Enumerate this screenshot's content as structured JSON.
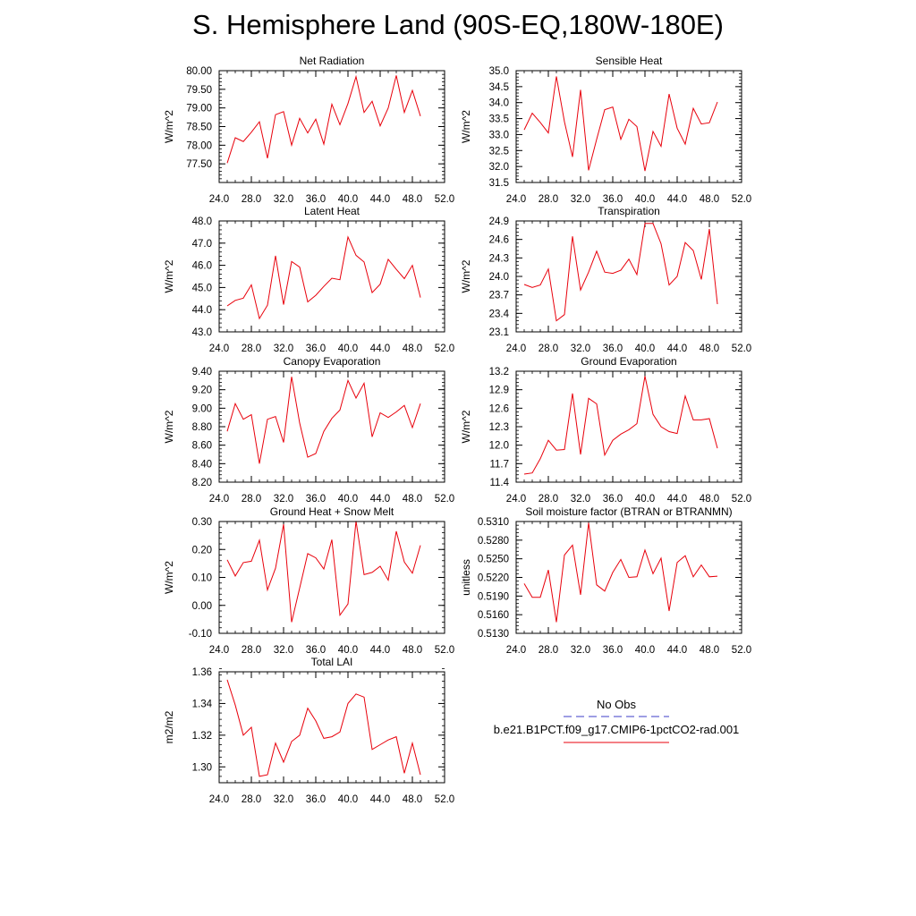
{
  "title": "S. Hemisphere Land (90S-EQ,180W-180E)",
  "legend": {
    "entries": [
      {
        "label": "No Obs",
        "color": "#3c3cc8",
        "dash": true
      },
      {
        "label": "b.e21.B1PCT.f09_g17.CMIP6-1pctCO2-rad.001",
        "color": "#e8000b",
        "dash": false
      }
    ]
  },
  "chart_data": [
    {
      "type": "line",
      "title": "Net Radiation",
      "ylabel": "W/m^2",
      "xlim": [
        24,
        52
      ],
      "xticks": [
        "24.0",
        "28.0",
        "32.0",
        "36.0",
        "40.0",
        "44.0",
        "48.0",
        "52.0"
      ],
      "ylim": [
        77.0,
        80.0
      ],
      "yticks": [
        "77.50",
        "78.00",
        "78.50",
        "79.00",
        "79.50",
        "80.00"
      ],
      "series": [
        {
          "color": "#e8000b",
          "x": [
            25,
            26,
            27,
            28,
            29,
            30,
            31,
            32,
            33,
            34,
            35,
            36,
            37,
            38,
            39,
            40,
            41,
            42,
            43,
            44,
            45,
            46,
            47,
            48,
            49
          ],
          "y": [
            77.52,
            78.2,
            78.1,
            78.35,
            78.63,
            77.65,
            78.82,
            78.9,
            78.0,
            78.72,
            78.33,
            78.7,
            78.03,
            79.1,
            78.55,
            79.12,
            79.84,
            78.88,
            79.18,
            78.52,
            79.0,
            79.87,
            78.88,
            79.47,
            78.78
          ]
        }
      ]
    },
    {
      "type": "line",
      "title": "Sensible Heat",
      "ylabel": "W/m^2",
      "xlim": [
        24,
        52
      ],
      "xticks": [
        "24.0",
        "28.0",
        "32.0",
        "36.0",
        "40.0",
        "44.0",
        "48.0",
        "52.0"
      ],
      "ylim": [
        31.5,
        35.0
      ],
      "yticks": [
        "31.5",
        "32.0",
        "32.5",
        "33.0",
        "33.5",
        "34.0",
        "34.5",
        "35.0"
      ],
      "series": [
        {
          "color": "#e8000b",
          "x": [
            25,
            26,
            27,
            28,
            29,
            30,
            31,
            32,
            33,
            34,
            35,
            36,
            37,
            38,
            39,
            40,
            41,
            42,
            43,
            44,
            45,
            46,
            47,
            48,
            49
          ],
          "y": [
            33.15,
            33.67,
            33.38,
            33.05,
            34.82,
            33.4,
            32.3,
            34.4,
            31.88,
            32.85,
            33.78,
            33.86,
            32.85,
            33.48,
            33.25,
            31.86,
            33.1,
            32.63,
            34.27,
            33.2,
            32.7,
            33.82,
            33.33,
            33.37,
            34.02
          ]
        }
      ]
    },
    {
      "type": "line",
      "title": "Latent Heat",
      "ylabel": "W/m^2",
      "xlim": [
        24,
        52
      ],
      "xticks": [
        "24.0",
        "28.0",
        "32.0",
        "36.0",
        "40.0",
        "44.0",
        "48.0",
        "52.0"
      ],
      "ylim": [
        43.0,
        48.0
      ],
      "yticks": [
        "43.0",
        "44.0",
        "45.0",
        "46.0",
        "47.0",
        "48.0"
      ],
      "series": [
        {
          "color": "#e8000b",
          "x": [
            25,
            26,
            27,
            28,
            29,
            30,
            31,
            32,
            33,
            34,
            35,
            36,
            37,
            38,
            39,
            40,
            41,
            42,
            43,
            44,
            45,
            46,
            47,
            48,
            49
          ],
          "y": [
            44.17,
            44.42,
            44.52,
            45.12,
            43.6,
            44.2,
            46.43,
            44.23,
            46.17,
            45.92,
            44.35,
            44.65,
            45.05,
            45.42,
            45.35,
            47.28,
            46.45,
            46.15,
            44.77,
            45.15,
            46.27,
            45.82,
            45.4,
            46.0,
            44.55
          ]
        }
      ]
    },
    {
      "type": "line",
      "title": "Transpiration",
      "ylabel": "W/m^2",
      "xlim": [
        24,
        52
      ],
      "xticks": [
        "24.0",
        "28.0",
        "32.0",
        "36.0",
        "40.0",
        "44.0",
        "48.0",
        "52.0"
      ],
      "ylim": [
        23.1,
        24.9
      ],
      "yticks": [
        "23.1",
        "23.4",
        "23.7",
        "24.0",
        "24.3",
        "24.6",
        "24.9"
      ],
      "series": [
        {
          "color": "#e8000b",
          "x": [
            25,
            26,
            27,
            28,
            29,
            30,
            31,
            32,
            33,
            34,
            35,
            36,
            37,
            38,
            39,
            40,
            41,
            42,
            43,
            44,
            45,
            46,
            47,
            48,
            49
          ],
          "y": [
            23.87,
            23.82,
            23.86,
            24.12,
            23.28,
            23.38,
            24.65,
            23.78,
            24.07,
            24.41,
            24.07,
            24.05,
            24.1,
            24.28,
            24.03,
            24.86,
            24.86,
            24.53,
            23.86,
            24.0,
            24.55,
            24.42,
            23.95,
            24.77,
            23.55
          ]
        }
      ]
    },
    {
      "type": "line",
      "title": "Canopy Evaporation",
      "ylabel": "W/m^2",
      "xlim": [
        24,
        52
      ],
      "xticks": [
        "24.0",
        "28.0",
        "32.0",
        "36.0",
        "40.0",
        "44.0",
        "48.0",
        "52.0"
      ],
      "ylim": [
        8.2,
        9.4
      ],
      "yticks": [
        "8.20",
        "8.40",
        "8.60",
        "8.80",
        "9.00",
        "9.20",
        "9.40"
      ],
      "series": [
        {
          "color": "#e8000b",
          "x": [
            25,
            26,
            27,
            28,
            29,
            30,
            31,
            32,
            33,
            34,
            35,
            36,
            37,
            38,
            39,
            40,
            41,
            42,
            43,
            44,
            45,
            46,
            47,
            48,
            49
          ],
          "y": [
            8.75,
            9.05,
            8.88,
            8.93,
            8.4,
            8.88,
            8.91,
            8.63,
            9.34,
            8.84,
            8.47,
            8.51,
            8.75,
            8.89,
            8.98,
            9.3,
            9.11,
            9.27,
            8.69,
            8.95,
            8.9,
            8.96,
            9.03,
            8.79,
            9.05
          ]
        }
      ]
    },
    {
      "type": "line",
      "title": "Ground Evaporation",
      "ylabel": "W/m^2",
      "xlim": [
        24,
        52
      ],
      "xticks": [
        "24.0",
        "28.0",
        "32.0",
        "36.0",
        "40.0",
        "44.0",
        "48.0",
        "52.0"
      ],
      "ylim": [
        11.4,
        13.2
      ],
      "yticks": [
        "11.4",
        "11.7",
        "12.0",
        "12.3",
        "12.6",
        "12.9",
        "13.2"
      ],
      "series": [
        {
          "color": "#e8000b",
          "x": [
            25,
            26,
            27,
            28,
            29,
            30,
            31,
            32,
            33,
            34,
            35,
            36,
            37,
            38,
            39,
            40,
            41,
            42,
            43,
            44,
            45,
            46,
            47,
            48,
            49
          ],
          "y": [
            11.53,
            11.55,
            11.78,
            12.08,
            11.92,
            11.93,
            12.84,
            11.85,
            12.76,
            12.67,
            11.84,
            12.08,
            12.18,
            12.25,
            12.35,
            13.12,
            12.5,
            12.3,
            12.22,
            12.19,
            12.8,
            12.41,
            12.41,
            12.43,
            11.95
          ]
        }
      ]
    },
    {
      "type": "line",
      "title": "Ground Heat + Snow Melt",
      "ylabel": "W/m^2",
      "xlim": [
        24,
        52
      ],
      "xticks": [
        "24.0",
        "28.0",
        "32.0",
        "36.0",
        "40.0",
        "44.0",
        "48.0",
        "52.0"
      ],
      "ylim": [
        -0.1,
        0.3
      ],
      "yticks": [
        "-0.10",
        "0.00",
        "0.10",
        "0.20",
        "0.30"
      ],
      "series": [
        {
          "color": "#e8000b",
          "x": [
            25,
            26,
            27,
            28,
            29,
            30,
            31,
            32,
            33,
            34,
            35,
            36,
            37,
            38,
            39,
            40,
            41,
            42,
            43,
            44,
            45,
            46,
            47,
            48,
            49
          ],
          "y": [
            0.163,
            0.105,
            0.153,
            0.158,
            0.233,
            0.055,
            0.133,
            0.29,
            -0.06,
            0.062,
            0.185,
            0.17,
            0.13,
            0.235,
            -0.035,
            0.005,
            0.302,
            0.11,
            0.118,
            0.14,
            0.09,
            0.265,
            0.155,
            0.115,
            0.215
          ]
        }
      ]
    },
    {
      "type": "line",
      "title": "Soil moisture factor (BTRAN or BTRANMN)",
      "ylabel": "unitless",
      "xlim": [
        24,
        52
      ],
      "xticks": [
        "24.0",
        "28.0",
        "32.0",
        "36.0",
        "40.0",
        "44.0",
        "48.0",
        "52.0"
      ],
      "ylim": [
        0.513,
        0.531
      ],
      "yticks": [
        "0.5130",
        "0.5160",
        "0.5190",
        "0.5220",
        "0.5250",
        "0.5280",
        "0.5310"
      ],
      "series": [
        {
          "color": "#e8000b",
          "x": [
            25,
            26,
            27,
            28,
            29,
            30,
            31,
            32,
            33,
            34,
            35,
            36,
            37,
            38,
            39,
            40,
            41,
            42,
            43,
            44,
            45,
            46,
            47,
            48,
            49
          ],
          "y": [
            0.521,
            0.5188,
            0.5188,
            0.5232,
            0.5148,
            0.5256,
            0.5272,
            0.5192,
            0.5308,
            0.5208,
            0.5198,
            0.5228,
            0.5249,
            0.522,
            0.5221,
            0.5264,
            0.5226,
            0.5251,
            0.5166,
            0.5244,
            0.5255,
            0.5221,
            0.524,
            0.5221,
            0.5222
          ]
        }
      ]
    },
    {
      "type": "line",
      "title": "Total LAI",
      "ylabel": "m2/m2",
      "xlim": [
        24,
        52
      ],
      "xticks": [
        "24.0",
        "28.0",
        "32.0",
        "36.0",
        "40.0",
        "44.0",
        "48.0",
        "52.0"
      ],
      "ylim": [
        1.29,
        1.36
      ],
      "yticks": [
        "1.30",
        "1.32",
        "1.34",
        "1.36"
      ],
      "series": [
        {
          "color": "#e8000b",
          "x": [
            25,
            26,
            27,
            28,
            29,
            30,
            31,
            32,
            33,
            34,
            35,
            36,
            37,
            38,
            39,
            40,
            41,
            42,
            43,
            44,
            45,
            46,
            47,
            48,
            49
          ],
          "y": [
            1.355,
            1.339,
            1.32,
            1.325,
            1.294,
            1.295,
            1.315,
            1.303,
            1.316,
            1.32,
            1.337,
            1.329,
            1.318,
            1.319,
            1.322,
            1.34,
            1.346,
            1.344,
            1.311,
            1.314,
            1.317,
            1.319,
            1.296,
            1.315,
            1.295
          ]
        }
      ]
    }
  ]
}
